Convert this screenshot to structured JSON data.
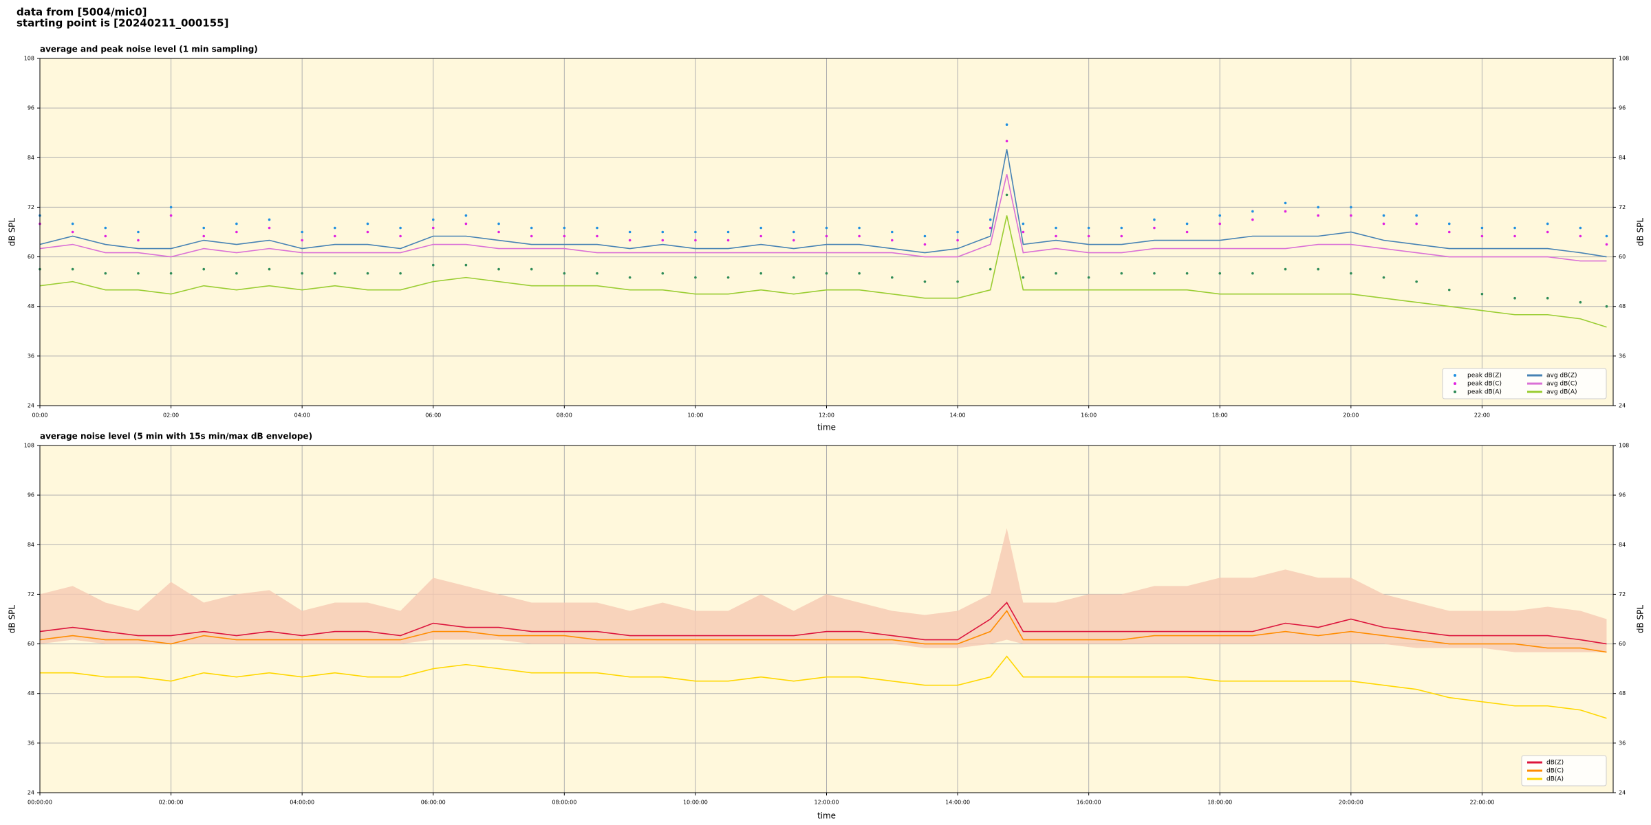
{
  "header": [
    "data from [5004/mic0]",
    "starting point is [20240211_000155]"
  ],
  "chart_data": [
    {
      "type": "line",
      "title": "average and peak noise level (1 min sampling)",
      "xlabel": "time",
      "ylabel": "dB SPL",
      "xlim": [
        0,
        24
      ],
      "ylim": [
        24,
        108
      ],
      "yticks": [
        24,
        36,
        48,
        60,
        72,
        84,
        96,
        108
      ],
      "xticks": [
        {
          "value": 0,
          "label": "00:00"
        },
        {
          "value": 2,
          "label": "02:00"
        },
        {
          "value": 4,
          "label": "04:00"
        },
        {
          "value": 6,
          "label": "06:00"
        },
        {
          "value": 8,
          "label": "08:00"
        },
        {
          "value": 10,
          "label": "10:00"
        },
        {
          "value": 12,
          "label": "12:00"
        },
        {
          "value": 14,
          "label": "14:00"
        },
        {
          "value": 16,
          "label": "16:00"
        },
        {
          "value": 18,
          "label": "18:00"
        },
        {
          "value": 20,
          "label": "20:00"
        },
        {
          "value": 22,
          "label": "22:00"
        }
      ],
      "grid": true,
      "legend": "lower right",
      "legend_columns": 2,
      "background": "#fff8dc",
      "x": [
        0,
        0.5,
        1,
        1.5,
        2,
        2.5,
        3,
        3.5,
        4,
        4.5,
        5,
        5.5,
        6,
        6.5,
        7,
        7.5,
        8,
        8.5,
        9,
        9.5,
        10,
        10.5,
        11,
        11.5,
        12,
        12.5,
        13,
        13.5,
        14,
        14.5,
        14.75,
        15,
        15.5,
        16,
        16.5,
        17,
        17.5,
        18,
        18.5,
        19,
        19.5,
        20,
        20.5,
        21,
        21.5,
        22,
        22.5,
        23,
        23.5,
        23.9
      ],
      "series": [
        {
          "name": "peak dB(Z)",
          "kind": "scatter",
          "color": "#1f8fe0",
          "values": [
            70,
            68,
            67,
            66,
            72,
            67,
            68,
            69,
            66,
            67,
            68,
            67,
            69,
            70,
            68,
            67,
            67,
            67,
            66,
            66,
            66,
            66,
            67,
            66,
            67,
            67,
            66,
            65,
            66,
            69,
            92,
            68,
            67,
            67,
            67,
            69,
            68,
            70,
            71,
            73,
            72,
            72,
            70,
            70,
            68,
            67,
            67,
            68,
            67,
            65
          ]
        },
        {
          "name": "peak dB(C)",
          "kind": "scatter",
          "color": "#e020e0",
          "values": [
            68,
            66,
            65,
            64,
            70,
            65,
            66,
            67,
            64,
            65,
            66,
            65,
            67,
            68,
            66,
            65,
            65,
            65,
            64,
            64,
            64,
            64,
            65,
            64,
            65,
            65,
            64,
            63,
            64,
            67,
            88,
            66,
            65,
            65,
            65,
            67,
            66,
            68,
            69,
            71,
            70,
            70,
            68,
            68,
            66,
            65,
            65,
            66,
            65,
            63
          ]
        },
        {
          "name": "peak dB(A)",
          "kind": "scatter",
          "color": "#2e8b57",
          "values": [
            57,
            57,
            56,
            56,
            56,
            57,
            56,
            57,
            56,
            56,
            56,
            56,
            58,
            58,
            57,
            57,
            56,
            56,
            55,
            56,
            55,
            55,
            56,
            55,
            56,
            56,
            55,
            54,
            54,
            57,
            75,
            55,
            56,
            55,
            56,
            56,
            56,
            56,
            56,
            57,
            57,
            56,
            55,
            54,
            52,
            51,
            50,
            50,
            49,
            48
          ]
        },
        {
          "name": "avg dB(Z)",
          "color": "#4682b4",
          "values": [
            63,
            65,
            63,
            62,
            62,
            64,
            63,
            64,
            62,
            63,
            63,
            62,
            65,
            65,
            64,
            63,
            63,
            63,
            62,
            63,
            62,
            62,
            63,
            62,
            63,
            63,
            62,
            61,
            62,
            65,
            86,
            63,
            64,
            63,
            63,
            64,
            64,
            64,
            65,
            65,
            65,
            66,
            64,
            63,
            62,
            62,
            62,
            62,
            61,
            60
          ]
        },
        {
          "name": "avg dB(C)",
          "color": "#da70d6",
          "values": [
            62,
            63,
            61,
            61,
            60,
            62,
            61,
            62,
            61,
            61,
            61,
            61,
            63,
            63,
            62,
            62,
            62,
            61,
            61,
            61,
            61,
            61,
            61,
            61,
            61,
            61,
            61,
            60,
            60,
            63,
            80,
            61,
            62,
            61,
            61,
            62,
            62,
            62,
            62,
            62,
            63,
            63,
            62,
            61,
            60,
            60,
            60,
            60,
            59,
            59
          ]
        },
        {
          "name": "avg dB(A)",
          "color": "#9acd32",
          "values": [
            53,
            54,
            52,
            52,
            51,
            53,
            52,
            53,
            52,
            53,
            52,
            52,
            54,
            55,
            54,
            53,
            53,
            53,
            52,
            52,
            51,
            51,
            52,
            51,
            52,
            52,
            51,
            50,
            50,
            52,
            70,
            52,
            52,
            52,
            52,
            52,
            52,
            51,
            51,
            51,
            51,
            51,
            50,
            49,
            48,
            47,
            46,
            46,
            45,
            43
          ]
        }
      ]
    },
    {
      "type": "line",
      "title": "average noise level (5 min with 15s min/max dB envelope)",
      "xlabel": "time",
      "ylabel": "dB SPL",
      "xlim": [
        0,
        24
      ],
      "ylim": [
        24,
        108
      ],
      "yticks": [
        24,
        36,
        48,
        60,
        72,
        84,
        96,
        108
      ],
      "xticks": [
        {
          "value": 0,
          "label": "00:00:00"
        },
        {
          "value": 2,
          "label": "02:00:00"
        },
        {
          "value": 4,
          "label": "04:00:00"
        },
        {
          "value": 6,
          "label": "06:00:00"
        },
        {
          "value": 8,
          "label": "08:00:00"
        },
        {
          "value": 10,
          "label": "10:00:00"
        },
        {
          "value": 12,
          "label": "12:00:00"
        },
        {
          "value": 14,
          "label": "14:00:00"
        },
        {
          "value": 16,
          "label": "16:00:00"
        },
        {
          "value": 18,
          "label": "18:00:00"
        },
        {
          "value": 20,
          "label": "20:00:00"
        },
        {
          "value": 22,
          "label": "22:00:00"
        }
      ],
      "grid": true,
      "legend": "lower right",
      "legend_columns": 1,
      "background": "#fff8dc",
      "x": [
        0,
        0.5,
        1,
        1.5,
        2,
        2.5,
        3,
        3.5,
        4,
        4.5,
        5,
        5.5,
        6,
        6.5,
        7,
        7.5,
        8,
        8.5,
        9,
        9.5,
        10,
        10.5,
        11,
        11.5,
        12,
        12.5,
        13,
        13.5,
        14,
        14.5,
        14.75,
        15,
        15.5,
        16,
        16.5,
        17,
        17.5,
        18,
        18.5,
        19,
        19.5,
        20,
        20.5,
        21,
        21.5,
        22,
        22.5,
        23,
        23.5,
        23.9
      ],
      "band": {
        "color": "#f6c9b3",
        "lower": [
          60,
          61,
          60,
          60,
          60,
          60,
          60,
          60,
          60,
          60,
          60,
          60,
          61,
          61,
          61,
          60,
          60,
          60,
          60,
          60,
          60,
          60,
          60,
          60,
          60,
          60,
          60,
          59,
          59,
          60,
          61,
          60,
          60,
          60,
          60,
          60,
          60,
          60,
          60,
          60,
          60,
          60,
          60,
          59,
          59,
          59,
          58,
          58,
          58,
          58
        ],
        "upper": [
          72,
          74,
          70,
          68,
          75,
          70,
          72,
          73,
          68,
          70,
          70,
          68,
          76,
          74,
          72,
          70,
          70,
          70,
          68,
          70,
          68,
          68,
          72,
          68,
          72,
          70,
          68,
          67,
          68,
          72,
          88,
          70,
          70,
          72,
          72,
          74,
          74,
          76,
          76,
          78,
          76,
          76,
          72,
          70,
          68,
          68,
          68,
          69,
          68,
          66
        ]
      },
      "series": [
        {
          "name": "dB(Z)",
          "color": "#dc143c",
          "values": [
            63,
            64,
            63,
            62,
            62,
            63,
            62,
            63,
            62,
            63,
            63,
            62,
            65,
            64,
            64,
            63,
            63,
            63,
            62,
            62,
            62,
            62,
            62,
            62,
            63,
            63,
            62,
            61,
            61,
            66,
            70,
            63,
            63,
            63,
            63,
            63,
            63,
            63,
            63,
            65,
            64,
            66,
            64,
            63,
            62,
            62,
            62,
            62,
            61,
            60
          ]
        },
        {
          "name": "dB(C)",
          "color": "#ff8c00",
          "values": [
            61,
            62,
            61,
            61,
            60,
            62,
            61,
            61,
            61,
            61,
            61,
            61,
            63,
            63,
            62,
            62,
            62,
            61,
            61,
            61,
            61,
            61,
            61,
            61,
            61,
            61,
            61,
            60,
            60,
            63,
            68,
            61,
            61,
            61,
            61,
            62,
            62,
            62,
            62,
            63,
            62,
            63,
            62,
            61,
            60,
            60,
            60,
            59,
            59,
            58
          ]
        },
        {
          "name": "dB(A)",
          "color": "#ffd700",
          "values": [
            53,
            53,
            52,
            52,
            51,
            53,
            52,
            53,
            52,
            53,
            52,
            52,
            54,
            55,
            54,
            53,
            53,
            53,
            52,
            52,
            51,
            51,
            52,
            51,
            52,
            52,
            51,
            50,
            50,
            52,
            57,
            52,
            52,
            52,
            52,
            52,
            52,
            51,
            51,
            51,
            51,
            51,
            50,
            49,
            47,
            46,
            45,
            45,
            44,
            42
          ]
        }
      ]
    }
  ]
}
